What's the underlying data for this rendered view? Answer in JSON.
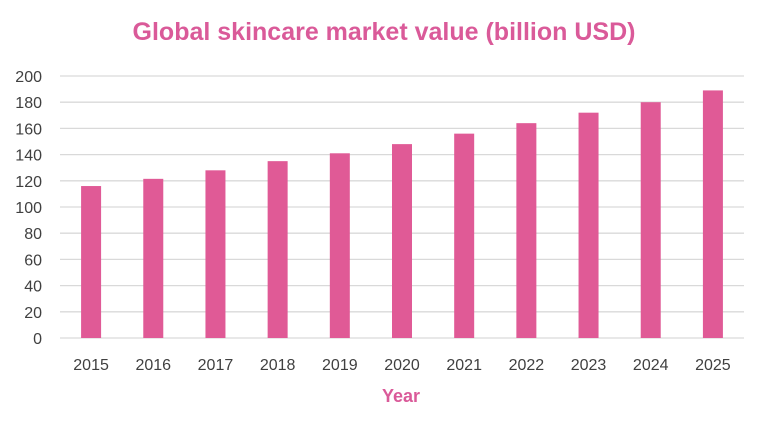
{
  "chart_data": {
    "type": "bar",
    "title": "Global skincare market value (billion USD)",
    "xlabel": "Year",
    "ylabel": "",
    "categories": [
      "2015",
      "2016",
      "2017",
      "2018",
      "2019",
      "2020",
      "2021",
      "2022",
      "2023",
      "2024",
      "2025"
    ],
    "values": [
      116,
      121.5,
      128,
      135,
      141,
      148,
      156,
      164,
      172,
      180,
      189
    ],
    "ylim": [
      0,
      200
    ],
    "yticks": [
      0,
      20,
      40,
      60,
      80,
      100,
      120,
      140,
      160,
      180,
      200
    ],
    "grid": true,
    "legend": "none",
    "colors": {
      "bar": "#E05A96",
      "title": "#DA5A99",
      "grid": "#D9D9D9",
      "tick_text": "#404040"
    }
  }
}
